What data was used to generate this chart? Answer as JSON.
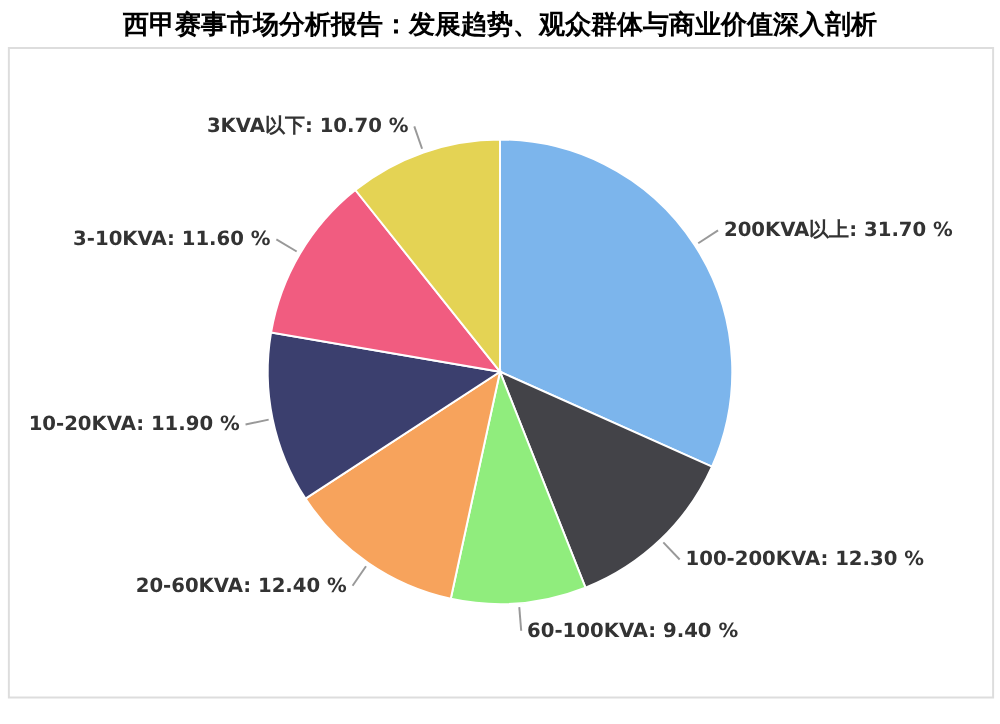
{
  "chart_data": {
    "type": "pie",
    "title": "西甲赛事市场分析报告：发展趋势、观众群体与商业价值深入剖析",
    "categories": [
      "200KVA以上",
      "100-200KVA",
      "60-100KVA",
      "20-60KVA",
      "10-20KVA",
      "3-10KVA",
      "3KVA以下"
    ],
    "values": [
      31.7,
      12.3,
      9.4,
      12.4,
      11.9,
      11.6,
      10.7
    ],
    "value_labels": [
      "31.70 %",
      "12.30 %",
      "9.40 %",
      "12.40 %",
      "11.90 %",
      "11.60 %",
      "10.70 %"
    ],
    "colors": [
      "#7cb5ec",
      "#434348",
      "#90ed7d",
      "#f7a35c",
      "#3b3f6e",
      "#f15c80",
      "#e4d354"
    ],
    "legend": false
  }
}
